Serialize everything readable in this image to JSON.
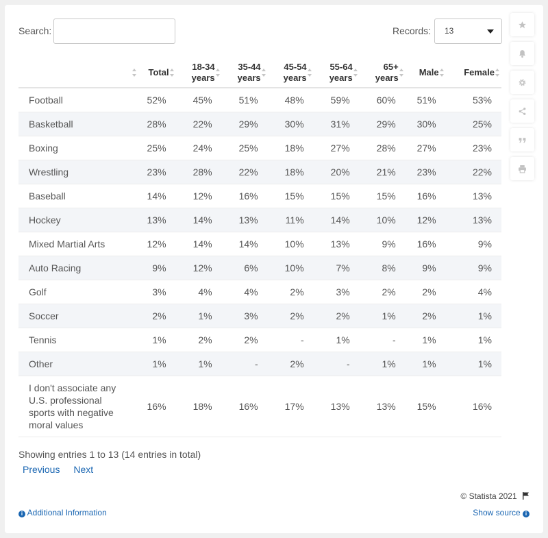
{
  "search": {
    "label": "Search:",
    "value": "",
    "placeholder": ""
  },
  "records": {
    "label": "Records:",
    "value": "13"
  },
  "table": {
    "headers": [
      {
        "top": "",
        "bottom": ""
      },
      {
        "top": "",
        "bottom": "Total"
      },
      {
        "top": "18-34",
        "bottom": "years"
      },
      {
        "top": "35-44",
        "bottom": "years"
      },
      {
        "top": "45-54",
        "bottom": "years"
      },
      {
        "top": "55-64",
        "bottom": "years"
      },
      {
        "top": "65+",
        "bottom": "years"
      },
      {
        "top": "",
        "bottom": "Male"
      },
      {
        "top": "",
        "bottom": "Female"
      }
    ],
    "rows": [
      [
        "Football",
        "52%",
        "45%",
        "51%",
        "48%",
        "59%",
        "60%",
        "51%",
        "53%"
      ],
      [
        "Basketball",
        "28%",
        "22%",
        "29%",
        "30%",
        "31%",
        "29%",
        "30%",
        "25%"
      ],
      [
        "Boxing",
        "25%",
        "24%",
        "25%",
        "18%",
        "27%",
        "28%",
        "27%",
        "23%"
      ],
      [
        "Wrestling",
        "23%",
        "28%",
        "22%",
        "18%",
        "20%",
        "21%",
        "23%",
        "22%"
      ],
      [
        "Baseball",
        "14%",
        "12%",
        "16%",
        "15%",
        "15%",
        "15%",
        "16%",
        "13%"
      ],
      [
        "Hockey",
        "13%",
        "14%",
        "13%",
        "11%",
        "14%",
        "10%",
        "12%",
        "13%"
      ],
      [
        "Mixed Martial Arts",
        "12%",
        "14%",
        "14%",
        "10%",
        "13%",
        "9%",
        "16%",
        "9%"
      ],
      [
        "Auto Racing",
        "9%",
        "12%",
        "6%",
        "10%",
        "7%",
        "8%",
        "9%",
        "9%"
      ],
      [
        "Golf",
        "3%",
        "4%",
        "4%",
        "2%",
        "3%",
        "2%",
        "2%",
        "4%"
      ],
      [
        "Soccer",
        "2%",
        "1%",
        "3%",
        "2%",
        "2%",
        "1%",
        "2%",
        "1%"
      ],
      [
        "Tennis",
        "1%",
        "2%",
        "2%",
        "-",
        "1%",
        "-",
        "1%",
        "1%"
      ],
      [
        "Other",
        "1%",
        "1%",
        "-",
        "2%",
        "-",
        "1%",
        "1%",
        "1%"
      ]
    ],
    "last_row": {
      "label_lines": [
        "I don't associate any",
        "U.S. professional",
        "sports with negative",
        "moral values"
      ],
      "values": [
        "16%",
        "18%",
        "16%",
        "17%",
        "13%",
        "13%",
        "15%",
        "16%"
      ]
    }
  },
  "footer": {
    "info": "Showing entries 1 to 13 (14 entries in total)",
    "previous": "Previous",
    "next": "Next",
    "credit": "© Statista 2021",
    "additional": "Additional Information",
    "source": "Show source"
  },
  "sidebar": {
    "buttons": [
      "star-icon",
      "bell-icon",
      "gear-icon",
      "share-icon",
      "quote-icon",
      "print-icon"
    ]
  },
  "colors": {
    "link": "#1a66b2",
    "row_alt": "#f3f5f8",
    "icon": "#c2c2c2"
  }
}
